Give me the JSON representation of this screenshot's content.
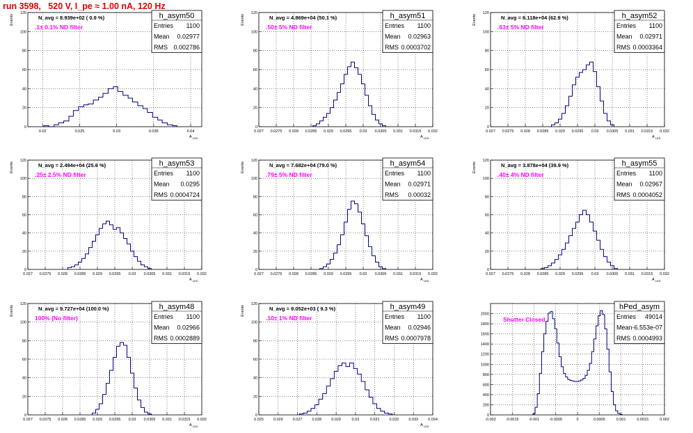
{
  "header": {
    "title": "run 3598,   520 V, I_pe ≈ 1.00 nA, 120 Hz"
  },
  "colors": {
    "title": "#e00000",
    "filter_note": "#ff00ff",
    "histogram": "#000080"
  },
  "chart_data": [
    {
      "type": "histogram",
      "name": "h_asym50",
      "ylabel": "Events",
      "xlabel": "A_LED",
      "navg": "N_avg = 8.939e+02 ( 0.9 %)",
      "note": ".1± 0.1% ND filter",
      "stats": [
        [
          "Entries",
          "1100"
        ],
        [
          "Mean",
          "0.02977"
        ],
        [
          "RMS",
          "0.002786"
        ]
      ],
      "xlim": [
        0.018,
        0.0415
      ],
      "ylim": [
        0,
        120
      ],
      "xticks": [
        0.02,
        0.025,
        0.03,
        0.035,
        0.04
      ],
      "xtick_labels": [
        "0.02",
        "0.025",
        "0.03",
        "0.035",
        "0.04"
      ],
      "yticks": [
        0,
        20,
        40,
        60,
        80,
        100,
        120
      ],
      "x": [
        0.0205,
        0.0212,
        0.0218,
        0.0225,
        0.0232,
        0.0238,
        0.0245,
        0.0252,
        0.0258,
        0.0265,
        0.0272,
        0.0278,
        0.0285,
        0.0292,
        0.0298,
        0.0305,
        0.0312,
        0.0318,
        0.0325,
        0.0332,
        0.0338,
        0.0345,
        0.0352,
        0.0358,
        0.0365,
        0.0372,
        0.0378
      ],
      "y": [
        1,
        0,
        2,
        4,
        6,
        11,
        17,
        21,
        23,
        24,
        28,
        31,
        35,
        40,
        42,
        37,
        33,
        30,
        26,
        22,
        19,
        15,
        10,
        7,
        4,
        2,
        1
      ]
    },
    {
      "type": "histogram",
      "name": "h_asym51",
      "ylabel": "Events",
      "xlabel": "A_LED",
      "navg": "N_avg = 4.869e+04 (50.1 %)",
      "note": ".50± 5% ND filter",
      "stats": [
        [
          "Entries",
          "1100"
        ],
        [
          "Mean",
          "0.02963"
        ],
        [
          "RMS",
          "0.0003702"
        ]
      ],
      "xlim": [
        0.027,
        0.032
      ],
      "ylim": [
        0,
        120
      ],
      "xticks": [
        0.027,
        0.0275,
        0.028,
        0.0285,
        0.029,
        0.0295,
        0.03,
        0.0305,
        0.031,
        0.0315,
        0.032
      ],
      "xtick_labels": [
        "0.027",
        "0.0275",
        "0.028",
        "0.0285",
        "0.029",
        "0.0295",
        "0.03",
        "0.0305",
        "0.031",
        "0.0315",
        "0.032"
      ],
      "yticks": [
        0,
        20,
        40,
        60,
        80,
        100,
        120
      ],
      "x": [
        0.0286,
        0.0287,
        0.0288,
        0.0289,
        0.029,
        0.0291,
        0.0292,
        0.0293,
        0.0294,
        0.0295,
        0.0296,
        0.0297,
        0.0298,
        0.0299,
        0.03,
        0.0301,
        0.0302,
        0.0303,
        0.0304,
        0.0305,
        0.0306
      ],
      "y": [
        1,
        3,
        6,
        10,
        14,
        20,
        28,
        36,
        45,
        55,
        63,
        68,
        62,
        55,
        45,
        33,
        22,
        13,
        7,
        3,
        1
      ]
    },
    {
      "type": "histogram",
      "name": "h_asym52",
      "ylabel": "Events",
      "xlabel": "A_LED",
      "navg": "N_avg = 6.118e+04 (62.9 %)",
      "note": ".63± 5% ND filter",
      "stats": [
        [
          "Entries",
          "1100"
        ],
        [
          "Mean",
          "0.02971"
        ],
        [
          "RMS",
          "0.0003364"
        ]
      ],
      "xlim": [
        0.027,
        0.032
      ],
      "ylim": [
        0,
        120
      ],
      "xticks": [
        0.027,
        0.0275,
        0.028,
        0.0285,
        0.029,
        0.0295,
        0.03,
        0.0305,
        0.031,
        0.0315,
        0.032
      ],
      "xtick_labels": [
        "0.027",
        "0.0275",
        "0.028",
        "0.0285",
        "0.029",
        "0.0295",
        "0.03",
        "0.0305",
        "0.031",
        "0.0315",
        "0.032"
      ],
      "yticks": [
        0,
        20,
        40,
        60,
        80,
        100,
        120
      ],
      "x": [
        0.0288,
        0.0289,
        0.029,
        0.0291,
        0.0292,
        0.0293,
        0.0294,
        0.0295,
        0.0296,
        0.0297,
        0.0298,
        0.0299,
        0.03,
        0.0301,
        0.0302,
        0.0303,
        0.0304,
        0.0305
      ],
      "y": [
        2,
        4,
        8,
        14,
        22,
        32,
        44,
        52,
        57,
        60,
        65,
        68,
        58,
        42,
        27,
        14,
        6,
        2
      ]
    },
    {
      "type": "histogram",
      "name": "h_asym53",
      "ylabel": "Events",
      "xlabel": "A_LED",
      "navg": "N_avg = 2.494e+04 (25.6 %)",
      "note": ".25± 2.5% ND filter",
      "stats": [
        [
          "Entries",
          "1100"
        ],
        [
          "Mean",
          "0.0295"
        ],
        [
          "RMS",
          "0.0004724"
        ]
      ],
      "xlim": [
        0.027,
        0.032
      ],
      "ylim": [
        0,
        120
      ],
      "xticks": [
        0.027,
        0.0275,
        0.028,
        0.0285,
        0.029,
        0.0295,
        0.03,
        0.0305,
        0.031,
        0.0315,
        0.032
      ],
      "xtick_labels": [
        "0.027",
        "0.0275",
        "0.028",
        "0.0285",
        "0.029",
        "0.0295",
        "0.03",
        "0.0305",
        "0.031",
        "0.0315",
        "0.032"
      ],
      "yticks": [
        0,
        20,
        40,
        60,
        80,
        100,
        120
      ],
      "x": [
        0.0282,
        0.0283,
        0.0284,
        0.0285,
        0.0286,
        0.0287,
        0.0288,
        0.0289,
        0.029,
        0.0291,
        0.0292,
        0.0293,
        0.0294,
        0.0295,
        0.0296,
        0.0297,
        0.0298,
        0.0299,
        0.03,
        0.0301,
        0.0302,
        0.0303,
        0.0304,
        0.0305
      ],
      "y": [
        2,
        3,
        5,
        8,
        12,
        17,
        24,
        31,
        38,
        45,
        50,
        53,
        49,
        44,
        46,
        40,
        34,
        28,
        20,
        14,
        9,
        5,
        3,
        1
      ]
    },
    {
      "type": "histogram",
      "name": "h_asym54",
      "ylabel": "Events",
      "xlabel": "A_LED",
      "navg": "N_avg = 7.682e+04 (79.0 %)",
      "note": ".79± 5% ND filter",
      "stats": [
        [
          "Entries",
          "1100"
        ],
        [
          "Mean",
          "0.02971"
        ],
        [
          "RMS",
          "0.00032"
        ]
      ],
      "xlim": [
        0.027,
        0.032
      ],
      "ylim": [
        0,
        120
      ],
      "xticks": [
        0.027,
        0.0275,
        0.028,
        0.0285,
        0.029,
        0.0295,
        0.03,
        0.0305,
        0.031,
        0.0315,
        0.032
      ],
      "xtick_labels": [
        "0.027",
        "0.0275",
        "0.028",
        "0.0285",
        "0.029",
        "0.0295",
        "0.03",
        "0.0305",
        "0.031",
        "0.0315",
        "0.032"
      ],
      "yticks": [
        0,
        20,
        40,
        60,
        80,
        100,
        120
      ],
      "x": [
        0.0288,
        0.0289,
        0.029,
        0.0291,
        0.0292,
        0.0293,
        0.0294,
        0.0295,
        0.0296,
        0.0297,
        0.0298,
        0.0299,
        0.03,
        0.0301,
        0.0302,
        0.0303,
        0.0304,
        0.0305,
        0.0306
      ],
      "y": [
        1,
        3,
        6,
        11,
        18,
        27,
        38,
        52,
        66,
        75,
        72,
        63,
        50,
        37,
        25,
        15,
        8,
        3,
        1
      ]
    },
    {
      "type": "histogram",
      "name": "h_asym55",
      "ylabel": "Events",
      "xlabel": "A_LED",
      "navg": "N_avg = 3.878e+04 (39.9 %)",
      "note": ".40± 4% ND filter",
      "stats": [
        [
          "Entries",
          "1100"
        ],
        [
          "Mean",
          "0.02967"
        ],
        [
          "RMS",
          "0.0004052"
        ]
      ],
      "xlim": [
        0.027,
        0.032
      ],
      "ylim": [
        0,
        120
      ],
      "xticks": [
        0.027,
        0.0275,
        0.028,
        0.0285,
        0.029,
        0.0295,
        0.03,
        0.0305,
        0.031,
        0.0315,
        0.032
      ],
      "xtick_labels": [
        "0.027",
        "0.0275",
        "0.028",
        "0.0285",
        "0.029",
        "0.0295",
        "0.03",
        "0.0305",
        "0.031",
        "0.0315",
        "0.032"
      ],
      "yticks": [
        0,
        20,
        40,
        60,
        80,
        100,
        120
      ],
      "x": [
        0.0285,
        0.0286,
        0.0287,
        0.0288,
        0.0289,
        0.029,
        0.0291,
        0.0292,
        0.0293,
        0.0294,
        0.0295,
        0.0296,
        0.0297,
        0.0298,
        0.0299,
        0.03,
        0.0301,
        0.0302,
        0.0303,
        0.0304,
        0.0305,
        0.0306
      ],
      "y": [
        1,
        2,
        4,
        7,
        11,
        16,
        22,
        29,
        37,
        45,
        52,
        60,
        65,
        60,
        52,
        42,
        32,
        22,
        14,
        8,
        4,
        1
      ]
    },
    {
      "type": "histogram",
      "name": "h_asym48",
      "ylabel": "Events",
      "xlabel": "A_LED",
      "navg": "N_avg = 9.727e+04 (100.0 %)",
      "note": "100% (No filter)",
      "stats": [
        [
          "Entries",
          "1100"
        ],
        [
          "Mean",
          "0.02966"
        ],
        [
          "RMS",
          "0.0002889"
        ]
      ],
      "xlim": [
        0.027,
        0.032
      ],
      "ylim": [
        0,
        120
      ],
      "xticks": [
        0.027,
        0.0275,
        0.028,
        0.0285,
        0.029,
        0.0295,
        0.03,
        0.0305,
        0.031,
        0.0315,
        0.032
      ],
      "xtick_labels": [
        "0.027",
        "0.0275",
        "0.028",
        "0.0285",
        "0.029",
        "0.0295",
        "0.03",
        "0.0305",
        "0.031",
        "0.0315",
        "0.032"
      ],
      "yticks": [
        0,
        20,
        40,
        60,
        80,
        100,
        120
      ],
      "x": [
        0.0289,
        0.029,
        0.0291,
        0.0292,
        0.0293,
        0.0294,
        0.0295,
        0.0296,
        0.0297,
        0.0298,
        0.0299,
        0.03,
        0.0301,
        0.0302,
        0.0303,
        0.0304,
        0.0305
      ],
      "y": [
        2,
        6,
        12,
        22,
        34,
        48,
        62,
        74,
        78,
        75,
        62,
        45,
        29,
        16,
        8,
        3,
        1
      ]
    },
    {
      "type": "histogram",
      "name": "h_asym49",
      "ylabel": "Events",
      "xlabel": "A_LED",
      "navg": "N_avg = 9.052e+03 ( 9.3 %)",
      "note": ".10± 1% ND filter",
      "stats": [
        [
          "Entries",
          "1100"
        ],
        [
          "Mean",
          "0.02946"
        ],
        [
          "RMS",
          "0.0007978"
        ]
      ],
      "xlim": [
        0.025,
        0.034
      ],
      "ylim": [
        0,
        120
      ],
      "xticks": [
        0.025,
        0.026,
        0.027,
        0.028,
        0.029,
        0.03,
        0.031,
        0.032,
        0.033,
        0.034
      ],
      "xtick_labels": [
        "0.025",
        "0.026",
        "0.027",
        "0.028",
        "0.029",
        "0.03",
        "0.031",
        "0.032",
        "0.033",
        "0.034"
      ],
      "yticks": [
        0,
        20,
        40,
        60,
        80,
        100,
        120
      ],
      "x": [
        0.0272,
        0.0274,
        0.0276,
        0.0278,
        0.028,
        0.0282,
        0.0284,
        0.0286,
        0.0288,
        0.029,
        0.0292,
        0.0294,
        0.0296,
        0.0298,
        0.03,
        0.0302,
        0.0304,
        0.0306,
        0.0308,
        0.031,
        0.0312,
        0.0314,
        0.0316,
        0.0318
      ],
      "y": [
        1,
        2,
        4,
        7,
        11,
        17,
        23,
        31,
        39,
        47,
        53,
        56,
        52,
        56,
        50,
        44,
        36,
        27,
        19,
        12,
        7,
        4,
        2,
        1
      ]
    },
    {
      "type": "histogram",
      "name": "hPed_asym",
      "ylabel": "",
      "xlabel": "",
      "navg": "",
      "note": "Shutter Closed",
      "stats": [
        [
          "Entries",
          "49014"
        ],
        [
          "Mean",
          "-6.553e-07"
        ],
        [
          "RMS",
          "0.0004993"
        ]
      ],
      "xlim": [
        -0.002,
        0.002
      ],
      "ylim": [
        0,
        2200
      ],
      "xticks": [
        -0.002,
        -0.0015,
        -0.001,
        -0.0005,
        0,
        0.0005,
        0.001,
        0.0015,
        0.002
      ],
      "xtick_labels": [
        "-0.002",
        "-0.0015",
        "-0.001",
        "-0.0005",
        "0",
        "0.0005",
        "0.001",
        "0.0015",
        "0.002"
      ],
      "yticks": [
        0,
        200,
        400,
        600,
        800,
        1000,
        1200,
        1400,
        1600,
        1800,
        2000
      ],
      "x": [
        -0.001,
        -0.00095,
        -0.0009,
        -0.00085,
        -0.0008,
        -0.00075,
        -0.0007,
        -0.00065,
        -0.0006,
        -0.00055,
        -0.0005,
        -0.00045,
        -0.0004,
        -0.00035,
        -0.0003,
        -0.00025,
        -0.0002,
        -0.00015,
        -0.0001,
        -5e-05,
        0,
        5e-05,
        0.0001,
        0.00015,
        0.0002,
        0.00025,
        0.0003,
        0.00035,
        0.0004,
        0.00045,
        0.0005,
        0.00055,
        0.0006,
        0.00065,
        0.0007,
        0.00075,
        0.0008,
        0.00085,
        0.0009,
        0.00095,
        0.001
      ],
      "y": [
        20,
        150,
        420,
        820,
        1250,
        1600,
        1850,
        2010,
        2040,
        1900,
        1700,
        1420,
        1150,
        950,
        820,
        750,
        700,
        680,
        670,
        660,
        660,
        670,
        690,
        720,
        780,
        880,
        1020,
        1250,
        1500,
        1760,
        1960,
        2060,
        1980,
        1700,
        1300,
        850,
        460,
        200,
        80,
        30,
        10
      ]
    }
  ]
}
